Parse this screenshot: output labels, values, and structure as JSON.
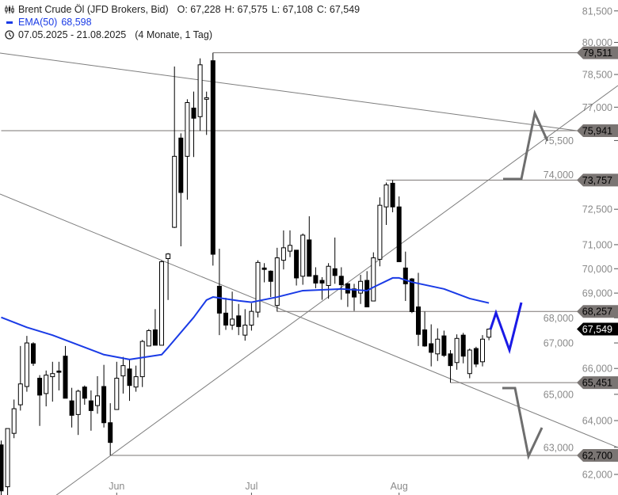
{
  "header": {
    "instrument": "Brent Crude Öl (JFD Brokers, Bid)",
    "open": "O: 67,228",
    "high": "H: 67,575",
    "low": "L: 67,108",
    "close": "C: 67,549",
    "ema_label": "EMA(50)",
    "ema_value": "68,598",
    "range": "07.05.2025 - 21.08.2025",
    "duration": "(4 Monate, 1 Tag)",
    "icons": [
      "candlestick-icon",
      "ema-line-icon",
      "clock-icon"
    ]
  },
  "chart_data": {
    "type": "candlestick",
    "y_scale": "log",
    "ylim": [
      61500,
      82000
    ],
    "y_ticks": [
      62000,
      63000,
      64000,
      65000,
      66000,
      67000,
      68000,
      69000,
      70000,
      71000,
      72500,
      74000,
      75500,
      77000,
      78500,
      80000,
      81500
    ],
    "y_tick_labels": [
      "62,000",
      "63,000",
      "64,000",
      "65,000",
      "66,000",
      "67,000",
      "68,000",
      "69,000",
      "70,000",
      "71,000",
      "72,500",
      "74,000",
      "75,500",
      "77,000",
      "78,500",
      "80,000",
      "81,500"
    ],
    "x_labels": [
      {
        "index": 18,
        "label": "Jun"
      },
      {
        "index": 39,
        "label": "Jul"
      },
      {
        "index": 62,
        "label": "Aug"
      }
    ],
    "ohlc": [
      [
        63090,
        63250,
        61250,
        61400
      ],
      [
        61550,
        63700,
        61250,
        63700
      ],
      [
        63520,
        64800,
        63340,
        64450
      ],
      [
        64600,
        66880,
        64380,
        65400
      ],
      [
        65300,
        67280,
        65100,
        67000
      ],
      [
        66970,
        67030,
        66100,
        66200
      ],
      [
        65620,
        65740,
        63800,
        64970
      ],
      [
        65030,
        65920,
        64540,
        65740
      ],
      [
        65680,
        66260,
        64720,
        65800
      ],
      [
        65900,
        66260,
        65150,
        65850
      ],
      [
        66480,
        66880,
        64850,
        64850
      ],
      [
        64750,
        65250,
        63740,
        64200
      ],
      [
        64230,
        65180,
        63460,
        65120
      ],
      [
        65280,
        65340,
        64600,
        64850
      ],
      [
        64750,
        65150,
        63620,
        64380
      ],
      [
        64570,
        65700,
        64260,
        64940
      ],
      [
        65300,
        66140,
        63740,
        63920
      ],
      [
        63920,
        64660,
        62700,
        63180
      ],
      [
        64420,
        66260,
        64420,
        65620
      ],
      [
        65710,
        66450,
        65030,
        66110
      ],
      [
        65980,
        66350,
        64750,
        65340
      ],
      [
        65280,
        66110,
        65100,
        65680
      ],
      [
        65680,
        67120,
        65280,
        67060
      ],
      [
        66880,
        67550,
        66880,
        67490
      ],
      [
        67520,
        68350,
        66910,
        66910
      ],
      [
        66910,
        70350,
        66910,
        70290
      ],
      [
        70420,
        70650,
        68720,
        70610
      ],
      [
        71730,
        78870,
        71700,
        74800
      ],
      [
        75610,
        75820,
        70930,
        73220
      ],
      [
        74800,
        77360,
        72910,
        77210
      ],
      [
        76960,
        77710,
        74770,
        76500
      ],
      [
        76570,
        79250,
        75930,
        78950
      ],
      [
        77360,
        77710,
        75750,
        77430
      ],
      [
        79140,
        79511,
        70130,
        70600
      ],
      [
        69280,
        70830,
        67310,
        68190
      ],
      [
        68190,
        68810,
        67520,
        67710
      ],
      [
        67710,
        69060,
        67520,
        67950
      ],
      [
        68080,
        68560,
        67310,
        67650
      ],
      [
        67310,
        68350,
        67090,
        67710
      ],
      [
        67710,
        68590,
        67490,
        68260
      ],
      [
        68230,
        70350,
        68020,
        70260
      ],
      [
        70030,
        70230,
        69440,
        69970
      ],
      [
        69900,
        69930,
        68840,
        69480
      ],
      [
        68500,
        70870,
        68250,
        70450
      ],
      [
        70350,
        71600,
        69970,
        70870
      ],
      [
        70730,
        71600,
        70480,
        70970
      ],
      [
        70770,
        70770,
        69310,
        69620
      ],
      [
        69690,
        71470,
        69340,
        71400
      ],
      [
        71200,
        72200,
        69690,
        69690
      ],
      [
        69720,
        70060,
        69200,
        69410
      ],
      [
        69520,
        69650,
        68730,
        69410
      ],
      [
        69310,
        70230,
        68770,
        70100
      ],
      [
        70000,
        71300,
        69380,
        69720
      ],
      [
        69690,
        70060,
        68730,
        69340
      ],
      [
        69380,
        69410,
        68440,
        69000
      ],
      [
        69170,
        69380,
        68280,
        68840
      ],
      [
        69000,
        69750,
        68560,
        69480
      ],
      [
        69520,
        69900,
        68440,
        68440
      ],
      [
        68680,
        70680,
        68680,
        70450
      ],
      [
        70390,
        73010,
        70100,
        72670
      ],
      [
        72600,
        73650,
        71830,
        73550
      ],
      [
        73620,
        73757,
        72370,
        72600
      ],
      [
        72600,
        73050,
        70290,
        70290
      ],
      [
        70030,
        70710,
        68680,
        69380
      ],
      [
        69580,
        69620,
        68190,
        68250
      ],
      [
        68440,
        69830,
        66880,
        67340
      ],
      [
        67520,
        68250,
        66850,
        66880
      ],
      [
        66970,
        67740,
        66080,
        66630
      ],
      [
        66570,
        67580,
        66290,
        67150
      ],
      [
        67280,
        67490,
        66450,
        66510
      ],
      [
        66570,
        66720,
        65451,
        66110
      ],
      [
        66230,
        67340,
        65950,
        67180
      ],
      [
        67310,
        67400,
        66200,
        66480
      ],
      [
        65800,
        66780,
        65620,
        66720
      ],
      [
        66780,
        66850,
        66050,
        66170
      ],
      [
        66260,
        67310,
        66080,
        67150
      ],
      [
        67228,
        67575,
        67108,
        67549
      ]
    ],
    "ema50": {
      "name": "EMA(50)",
      "color": "#1a3be6",
      "points": [
        [
          0,
          68020
        ],
        [
          4,
          67620
        ],
        [
          8,
          67310
        ],
        [
          16,
          66540
        ],
        [
          20,
          66350
        ],
        [
          25,
          66540
        ],
        [
          26,
          66820
        ],
        [
          30,
          68020
        ],
        [
          32,
          68720
        ],
        [
          33,
          68840
        ],
        [
          37,
          68690
        ],
        [
          39,
          68630
        ],
        [
          43,
          68840
        ],
        [
          47,
          69100
        ],
        [
          53,
          69170
        ],
        [
          57,
          69100
        ],
        [
          58,
          69240
        ],
        [
          61,
          69620
        ],
        [
          62,
          69620
        ],
        [
          64,
          69450
        ],
        [
          69,
          69170
        ],
        [
          73,
          68780
        ],
        [
          76,
          68598
        ]
      ]
    },
    "levels": [
      {
        "price": 79511,
        "label": "79,511",
        "from_index": 33
      },
      {
        "price": 75941,
        "label": "75,941",
        "from_index": 0
      },
      {
        "price": 73757,
        "label": "73,757",
        "from_index": 60
      },
      {
        "price": 68257,
        "label": "68,257",
        "from_index": 43
      },
      {
        "price": 65451,
        "label": "65,451",
        "from_index": 70
      },
      {
        "price": 62700,
        "label": "62,700",
        "from_index": 17
      }
    ],
    "last_price": {
      "price": 67549,
      "label": "67,549"
    },
    "colors": {
      "level": "#7a7573",
      "last": "#000000",
      "axis_text": "#8a8a8a",
      "forecast_gray": "#6e6e6e",
      "forecast_blue": "#1a1ae6"
    }
  }
}
